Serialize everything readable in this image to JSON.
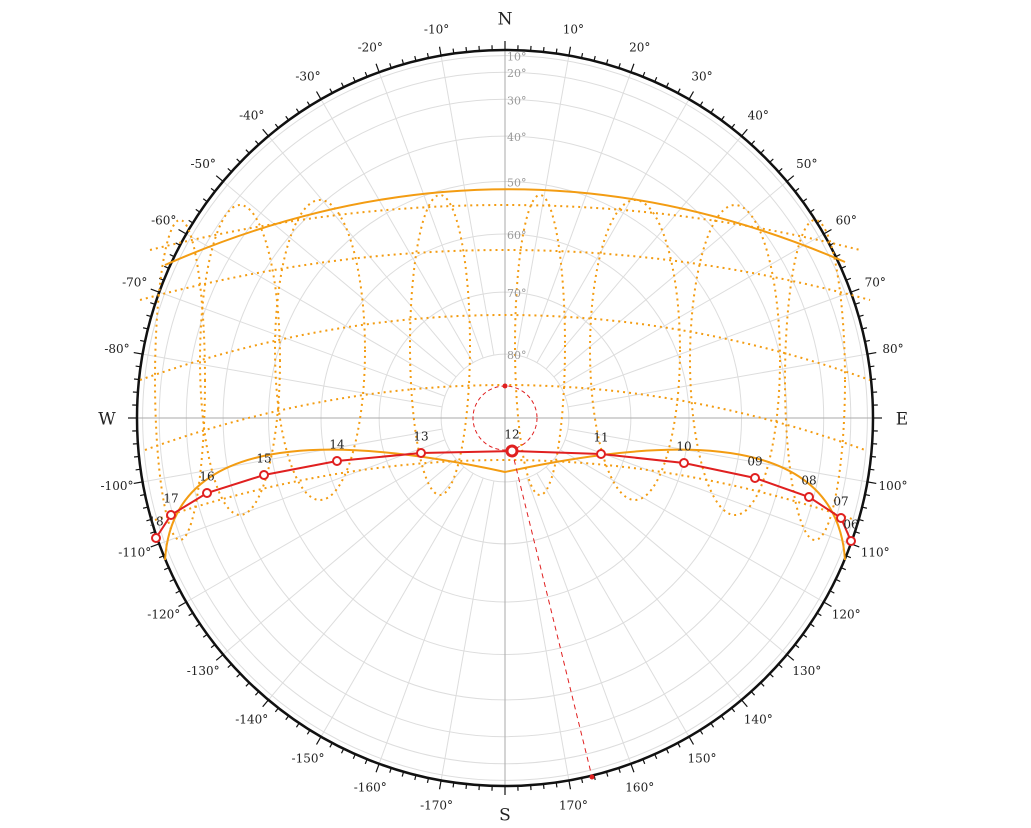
{
  "compass": {
    "north": "N",
    "east": "E",
    "south": "S",
    "west": "W"
  },
  "azimuth_labels": [
    "10°",
    "20°",
    "30°",
    "40°",
    "50°",
    "60°",
    "70°",
    "80°",
    "100°",
    "110°",
    "120°",
    "130°",
    "140°",
    "150°",
    "160°",
    "170°",
    "-170°",
    "-160°",
    "-150°",
    "-140°",
    "-130°",
    "-120°",
    "-110°",
    "-100°",
    "-80°",
    "-70°",
    "-60°",
    "-50°",
    "-40°",
    "-30°",
    "-20°",
    "-10°"
  ],
  "altitude_labels": [
    "10°",
    "20°",
    "30°",
    "40°",
    "50°",
    "60°",
    "70°",
    "80°"
  ],
  "hours": [
    "06",
    "07",
    "08",
    "09",
    "10",
    "11",
    "12",
    "13",
    "14",
    "15",
    "16",
    "17",
    "18"
  ]
}
